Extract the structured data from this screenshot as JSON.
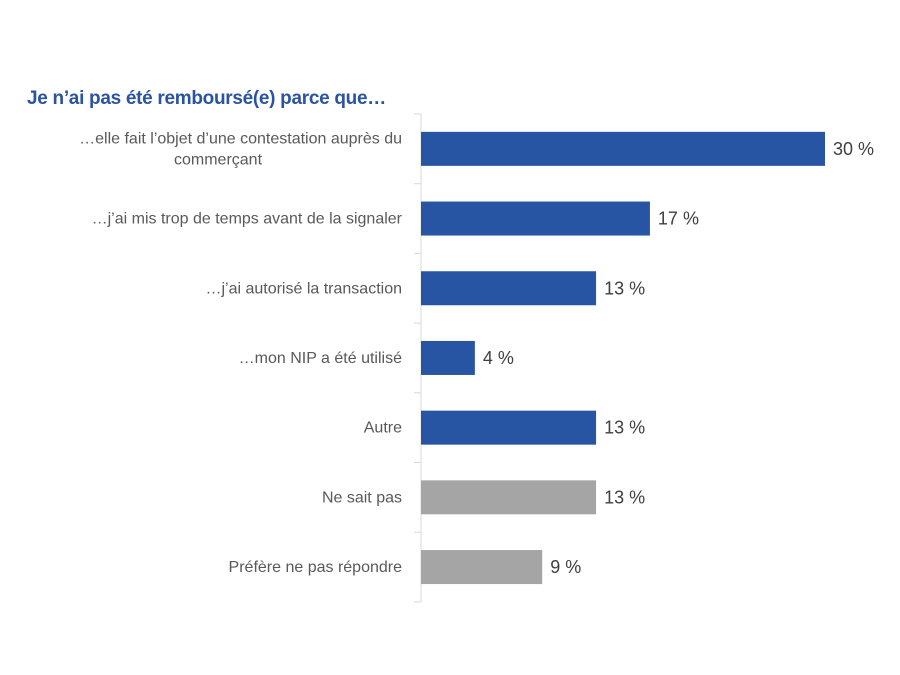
{
  "chart_data": {
    "type": "bar",
    "orientation": "horizontal",
    "title": "Je n’ai pas été remboursé(e) parce que…",
    "categories": [
      [
        "…elle fait l’objet d’une contestation auprès du",
        "commerçant"
      ],
      [
        "…j’ai mis trop de temps avant de la signaler"
      ],
      [
        "…j’ai autorisé la transaction"
      ],
      [
        "…mon NIP a été utilisé"
      ],
      [
        "Autre"
      ],
      [
        "Ne sait pas"
      ],
      [
        "Préfère ne pas répondre"
      ]
    ],
    "values": [
      30,
      17,
      13,
      4,
      13,
      13,
      9
    ],
    "labels": [
      "30 %",
      "17 %",
      "13 %",
      "4 %",
      "13 %",
      "13 %",
      "9 %"
    ],
    "bar_colors": [
      "#2855A3",
      "#2855A3",
      "#2855A3",
      "#2855A3",
      "#2855A3",
      "#A5A5A5",
      "#A5A5A5"
    ],
    "xlim": [
      0,
      30
    ],
    "grid": false,
    "legend": "none"
  }
}
